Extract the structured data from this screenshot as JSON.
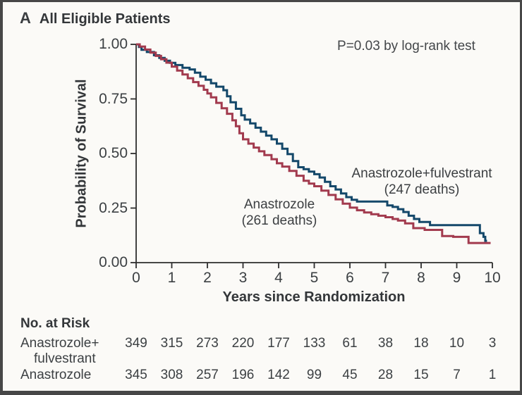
{
  "panel": {
    "label": "A",
    "title": "All Eligible Patients"
  },
  "chart_data": {
    "type": "line",
    "subtype": "kaplan-meier-step",
    "title": "All Eligible Patients",
    "annotation": "P=0.03 by log-rank test",
    "xlabel": "Years since Randomization",
    "ylabel": "Probability of Survival",
    "xlim": [
      0,
      10
    ],
    "ylim": [
      0.0,
      1.0
    ],
    "grid": false,
    "x_ticks": [
      0,
      1,
      2,
      3,
      4,
      5,
      6,
      7,
      8,
      9,
      10
    ],
    "y_ticks": [
      {
        "label": "1.00",
        "value": 1.0
      },
      {
        "label": "0.75",
        "value": 0.75
      },
      {
        "label": "0.50",
        "value": 0.5
      },
      {
        "label": "0.25",
        "value": 0.25
      },
      {
        "label": "0.00",
        "value": 0.0
      }
    ],
    "series": [
      {
        "name": "Anastrozole+fulvestrant",
        "deaths": 247,
        "label_lines": [
          "Anastrozole+fulvestrant",
          "(247 deaths)"
        ],
        "color": "#14486a",
        "points": [
          [
            0,
            1.0
          ],
          [
            0.08,
            0.988
          ],
          [
            0.15,
            0.975
          ],
          [
            0.3,
            0.965
          ],
          [
            0.5,
            0.95
          ],
          [
            0.65,
            0.938
          ],
          [
            0.8,
            0.925
          ],
          [
            0.95,
            0.915
          ],
          [
            1.1,
            0.905
          ],
          [
            1.3,
            0.893
          ],
          [
            1.5,
            0.885
          ],
          [
            1.65,
            0.87
          ],
          [
            1.8,
            0.852
          ],
          [
            1.95,
            0.838
          ],
          [
            2.1,
            0.822
          ],
          [
            2.25,
            0.806
          ],
          [
            2.45,
            0.79
          ],
          [
            2.55,
            0.762
          ],
          [
            2.65,
            0.735
          ],
          [
            2.8,
            0.705
          ],
          [
            2.95,
            0.675
          ],
          [
            3.05,
            0.655
          ],
          [
            3.2,
            0.638
          ],
          [
            3.35,
            0.618
          ],
          [
            3.5,
            0.6
          ],
          [
            3.65,
            0.582
          ],
          [
            3.8,
            0.565
          ],
          [
            3.95,
            0.545
          ],
          [
            4.1,
            0.522
          ],
          [
            4.25,
            0.497
          ],
          [
            4.4,
            0.465
          ],
          [
            4.55,
            0.437
          ],
          [
            4.7,
            0.428
          ],
          [
            4.85,
            0.417
          ],
          [
            5.0,
            0.405
          ],
          [
            5.15,
            0.39
          ],
          [
            5.3,
            0.37
          ],
          [
            5.45,
            0.35
          ],
          [
            5.6,
            0.335
          ],
          [
            5.75,
            0.317
          ],
          [
            5.9,
            0.3
          ],
          [
            6.05,
            0.288
          ],
          [
            6.2,
            0.28
          ],
          [
            7.05,
            0.262
          ],
          [
            7.2,
            0.255
          ],
          [
            7.35,
            0.245
          ],
          [
            7.5,
            0.232
          ],
          [
            7.65,
            0.215
          ],
          [
            7.8,
            0.2
          ],
          [
            7.95,
            0.186
          ],
          [
            8.25,
            0.172
          ],
          [
            9.65,
            0.135
          ],
          [
            9.75,
            0.118
          ],
          [
            9.8,
            0.1
          ],
          [
            9.85,
            0.1
          ]
        ]
      },
      {
        "name": "Anastrozole",
        "deaths": 261,
        "label_lines": [
          "Anastrozole",
          "(261 deaths)"
        ],
        "color": "#a23a4e",
        "points": [
          [
            0,
            1.0
          ],
          [
            0.1,
            0.99
          ],
          [
            0.25,
            0.976
          ],
          [
            0.4,
            0.962
          ],
          [
            0.55,
            0.947
          ],
          [
            0.7,
            0.932
          ],
          [
            0.85,
            0.916
          ],
          [
            1.0,
            0.898
          ],
          [
            1.15,
            0.88
          ],
          [
            1.3,
            0.862
          ],
          [
            1.45,
            0.845
          ],
          [
            1.6,
            0.827
          ],
          [
            1.75,
            0.81
          ],
          [
            1.9,
            0.792
          ],
          [
            2.0,
            0.775
          ],
          [
            2.1,
            0.757
          ],
          [
            2.25,
            0.732
          ],
          [
            2.4,
            0.707
          ],
          [
            2.55,
            0.682
          ],
          [
            2.7,
            0.652
          ],
          [
            2.8,
            0.625
          ],
          [
            2.9,
            0.593
          ],
          [
            3.0,
            0.565
          ],
          [
            3.15,
            0.545
          ],
          [
            3.3,
            0.527
          ],
          [
            3.45,
            0.51
          ],
          [
            3.6,
            0.493
          ],
          [
            3.8,
            0.474
          ],
          [
            3.95,
            0.455
          ],
          [
            4.1,
            0.44
          ],
          [
            4.3,
            0.42
          ],
          [
            4.5,
            0.398
          ],
          [
            4.7,
            0.375
          ],
          [
            4.85,
            0.362
          ],
          [
            5.0,
            0.35
          ],
          [
            5.2,
            0.33
          ],
          [
            5.4,
            0.31
          ],
          [
            5.6,
            0.29
          ],
          [
            5.8,
            0.27
          ],
          [
            6.0,
            0.252
          ],
          [
            6.2,
            0.24
          ],
          [
            6.4,
            0.23
          ],
          [
            6.6,
            0.222
          ],
          [
            6.8,
            0.215
          ],
          [
            7.0,
            0.208
          ],
          [
            7.2,
            0.2
          ],
          [
            7.35,
            0.193
          ],
          [
            7.55,
            0.18
          ],
          [
            7.78,
            0.158
          ],
          [
            8.1,
            0.15
          ],
          [
            8.59,
            0.122
          ],
          [
            8.9,
            0.118
          ],
          [
            9.33,
            0.09
          ],
          [
            9.95,
            0.09
          ]
        ]
      }
    ]
  },
  "risk_table": {
    "title": "No. at Risk",
    "rows": [
      {
        "label_lines": [
          "Anastrozole+",
          "fulvestrant"
        ],
        "values": [
          349,
          315,
          273,
          220,
          177,
          133,
          61,
          38,
          18,
          10,
          3
        ]
      },
      {
        "label_lines": [
          "Anastrozole"
        ],
        "values": [
          345,
          308,
          257,
          196,
          142,
          99,
          45,
          28,
          15,
          7,
          1
        ]
      }
    ]
  }
}
